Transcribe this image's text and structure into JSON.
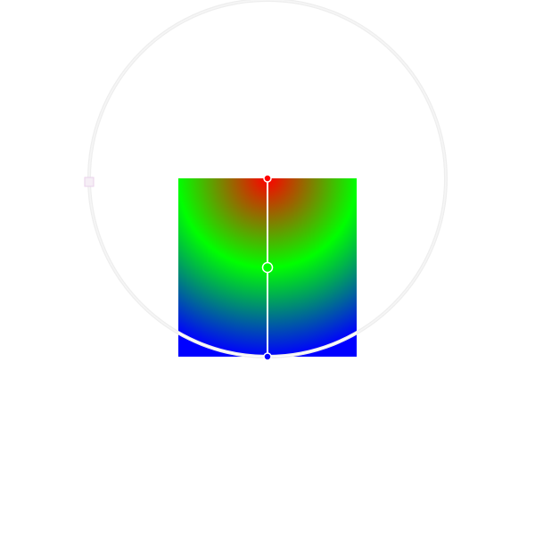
{
  "gradient": {
    "type": "radial",
    "stops": [
      {
        "offset": 0.0,
        "color": "#ff0000"
      },
      {
        "offset": 0.5,
        "color": "#00ff00"
      },
      {
        "offset": 1.0,
        "color": "#0000ff"
      }
    ]
  },
  "editor": {
    "ring_color": "#eeeeee",
    "line_color": "#ffffff",
    "stop_handle_stroke": "#ffffff",
    "midpoint_handle_color": "#00ff00",
    "focus_handle_color": "#f6eef6",
    "focus_handle_stroke": "#e8d2ea"
  }
}
